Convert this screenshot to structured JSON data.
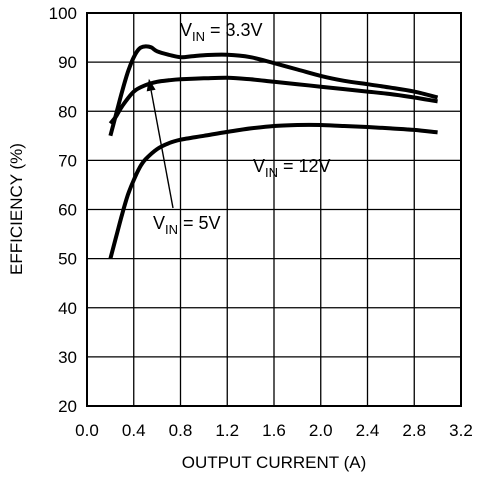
{
  "chart_data": {
    "type": "line",
    "xlabel": "OUTPUT CURRENT (A)",
    "ylabel": "EFFICIENCY (%)",
    "xlim": [
      0.0,
      3.2
    ],
    "ylim": [
      20,
      100
    ],
    "xticks": [
      "0.0",
      "0.4",
      "0.8",
      "1.2",
      "1.6",
      "2.0",
      "2.4",
      "2.8",
      "3.2"
    ],
    "yticks": [
      "20",
      "30",
      "40",
      "50",
      "60",
      "70",
      "80",
      "90",
      "100"
    ],
    "grid": true,
    "series": [
      {
        "name": "3.3V",
        "x": [
          0.2,
          0.25,
          0.3,
          0.35,
          0.4,
          0.45,
          0.5,
          0.55,
          0.6,
          0.7,
          0.8,
          0.9,
          1.0,
          1.2,
          1.4,
          1.6,
          1.8,
          2.0,
          2.2,
          2.4,
          2.6,
          2.8,
          3.0
        ],
        "y": [
          75.0,
          79.5,
          84.0,
          88.0,
          91.0,
          92.8,
          93.2,
          93.0,
          92.2,
          91.5,
          91.0,
          91.2,
          91.4,
          91.5,
          91.0,
          89.8,
          88.5,
          87.2,
          86.2,
          85.5,
          84.8,
          84.0,
          82.8
        ]
      },
      {
        "name": "5V",
        "x": [
          0.2,
          0.25,
          0.3,
          0.4,
          0.5,
          0.6,
          0.7,
          0.8,
          1.0,
          1.2,
          1.4,
          1.6,
          1.8,
          2.0,
          2.2,
          2.4,
          2.6,
          2.8,
          3.0
        ],
        "y": [
          77.5,
          79.0,
          81.0,
          84.0,
          85.3,
          86.0,
          86.3,
          86.5,
          86.7,
          86.8,
          86.5,
          86.0,
          85.5,
          85.0,
          84.5,
          84.0,
          83.5,
          82.8,
          82.0
        ]
      },
      {
        "name": "12V",
        "x": [
          0.2,
          0.25,
          0.3,
          0.35,
          0.4,
          0.45,
          0.5,
          0.6,
          0.7,
          0.8,
          1.0,
          1.2,
          1.4,
          1.6,
          1.8,
          2.0,
          2.2,
          2.4,
          2.6,
          2.8,
          3.0
        ],
        "y": [
          50.0,
          54.5,
          59.0,
          63.0,
          66.0,
          68.5,
          70.2,
          72.3,
          73.5,
          74.2,
          75.0,
          75.8,
          76.5,
          77.0,
          77.2,
          77.2,
          77.0,
          76.8,
          76.5,
          76.2,
          75.7
        ]
      }
    ],
    "annotations": [
      {
        "prefix": "V",
        "subscript": "IN",
        "suffix": " = 3.3V",
        "series": "3.3V"
      },
      {
        "prefix": "V",
        "subscript": "IN",
        "suffix": " = 12V",
        "series": "12V"
      },
      {
        "prefix": "V",
        "subscript": "IN",
        "suffix": " = 5V",
        "series": "5V",
        "pointer_to": {
          "x": 0.53,
          "y": 86.6
        }
      }
    ]
  }
}
